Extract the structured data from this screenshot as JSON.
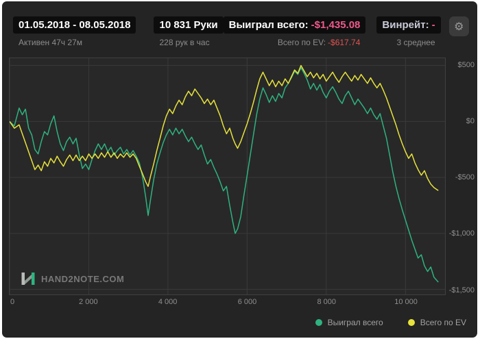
{
  "header": {
    "date_range": "01.05.2018 - 08.05.2018",
    "active_time": "Активен 47ч 27м",
    "hands": "10 831 Руки",
    "hands_per_hour": "228 рук в час",
    "won_total_label": "Выиграл всего:",
    "won_total_value": "-$1,435.08",
    "ev_total_label": "Всего по EV:",
    "ev_total_value": "-$617.74",
    "winrate_label": "Винрейт:",
    "winrate_value": "-",
    "average_label": "3 среднее",
    "won_value_color": "#f0598d",
    "ev_value_color": "#e05252",
    "winrate_value_color": "#f0598d"
  },
  "footer": {
    "logo_text": "HAND2NOTE.COM"
  },
  "icons": {
    "gear": "⚙"
  },
  "chart_data": {
    "type": "line",
    "title": "",
    "xlabel": "",
    "ylabel": "",
    "xlim": [
      0,
      11000
    ],
    "ylim": [
      -1545,
      565
    ],
    "x_ticks": [
      0,
      2000,
      4000,
      6000,
      8000,
      10000
    ],
    "x_tick_labels": [
      "0",
      "2 000",
      "4 000",
      "6 000",
      "8 000",
      "10 000"
    ],
    "y_ticks": [
      500,
      0,
      -500,
      -1000,
      -1500
    ],
    "y_tick_labels": [
      "$500",
      "$0",
      "-$500",
      "-$1,000",
      "-$1,500"
    ],
    "grid": true,
    "grid_color": "#3a3a3a",
    "plot_bg": "#282828",
    "legend_position": "bottom-right",
    "series": [
      {
        "name": "Выиграл всего",
        "color": "#2eb380",
        "points": [
          [
            0,
            0
          ],
          [
            120,
            -40
          ],
          [
            240,
            120
          ],
          [
            320,
            60
          ],
          [
            400,
            110
          ],
          [
            480,
            -60
          ],
          [
            560,
            -120
          ],
          [
            640,
            -250
          ],
          [
            720,
            -290
          ],
          [
            800,
            -180
          ],
          [
            880,
            -90
          ],
          [
            960,
            -120
          ],
          [
            1040,
            -20
          ],
          [
            1120,
            50
          ],
          [
            1200,
            -90
          ],
          [
            1280,
            -200
          ],
          [
            1360,
            -260
          ],
          [
            1440,
            -180
          ],
          [
            1520,
            -140
          ],
          [
            1600,
            -200
          ],
          [
            1680,
            -150
          ],
          [
            1760,
            -300
          ],
          [
            1840,
            -420
          ],
          [
            1920,
            -380
          ],
          [
            2000,
            -430
          ],
          [
            2080,
            -340
          ],
          [
            2160,
            -260
          ],
          [
            2240,
            -200
          ],
          [
            2320,
            -250
          ],
          [
            2400,
            -200
          ],
          [
            2480,
            -270
          ],
          [
            2560,
            -230
          ],
          [
            2640,
            -300
          ],
          [
            2720,
            -260
          ],
          [
            2800,
            -230
          ],
          [
            2880,
            -290
          ],
          [
            2960,
            -250
          ],
          [
            3040,
            -300
          ],
          [
            3120,
            -260
          ],
          [
            3200,
            -310
          ],
          [
            3280,
            -370
          ],
          [
            3360,
            -500
          ],
          [
            3440,
            -680
          ],
          [
            3500,
            -840
          ],
          [
            3560,
            -700
          ],
          [
            3640,
            -520
          ],
          [
            3720,
            -380
          ],
          [
            3800,
            -280
          ],
          [
            3880,
            -190
          ],
          [
            3960,
            -120
          ],
          [
            4040,
            -70
          ],
          [
            4120,
            -120
          ],
          [
            4200,
            -60
          ],
          [
            4280,
            -110
          ],
          [
            4360,
            -70
          ],
          [
            4440,
            -130
          ],
          [
            4520,
            -180
          ],
          [
            4600,
            -140
          ],
          [
            4680,
            -200
          ],
          [
            4760,
            -250
          ],
          [
            4840,
            -210
          ],
          [
            4920,
            -300
          ],
          [
            5000,
            -380
          ],
          [
            5080,
            -340
          ],
          [
            5160,
            -410
          ],
          [
            5240,
            -470
          ],
          [
            5320,
            -540
          ],
          [
            5400,
            -620
          ],
          [
            5480,
            -580
          ],
          [
            5560,
            -750
          ],
          [
            5640,
            -900
          ],
          [
            5700,
            -1000
          ],
          [
            5760,
            -960
          ],
          [
            5840,
            -850
          ],
          [
            5920,
            -660
          ],
          [
            6000,
            -480
          ],
          [
            6080,
            -300
          ],
          [
            6160,
            -120
          ],
          [
            6240,
            60
          ],
          [
            6320,
            200
          ],
          [
            6400,
            300
          ],
          [
            6480,
            240
          ],
          [
            6560,
            170
          ],
          [
            6640,
            230
          ],
          [
            6720,
            180
          ],
          [
            6800,
            250
          ],
          [
            6880,
            210
          ],
          [
            6960,
            300
          ],
          [
            7040,
            340
          ],
          [
            7120,
            390
          ],
          [
            7200,
            450
          ],
          [
            7280,
            420
          ],
          [
            7360,
            480
          ],
          [
            7440,
            430
          ],
          [
            7520,
            370
          ],
          [
            7600,
            290
          ],
          [
            7680,
            340
          ],
          [
            7760,
            280
          ],
          [
            7840,
            330
          ],
          [
            7920,
            260
          ],
          [
            8000,
            210
          ],
          [
            8080,
            270
          ],
          [
            8160,
            310
          ],
          [
            8240,
            260
          ],
          [
            8320,
            200
          ],
          [
            8400,
            160
          ],
          [
            8480,
            230
          ],
          [
            8560,
            270
          ],
          [
            8640,
            210
          ],
          [
            8720,
            150
          ],
          [
            8800,
            200
          ],
          [
            8880,
            160
          ],
          [
            8960,
            120
          ],
          [
            9040,
            70
          ],
          [
            9120,
            120
          ],
          [
            9200,
            60
          ],
          [
            9280,
            20
          ],
          [
            9360,
            70
          ],
          [
            9440,
            -40
          ],
          [
            9520,
            -150
          ],
          [
            9600,
            -300
          ],
          [
            9680,
            -450
          ],
          [
            9760,
            -580
          ],
          [
            9840,
            -690
          ],
          [
            9920,
            -790
          ],
          [
            10000,
            -880
          ],
          [
            10080,
            -970
          ],
          [
            10160,
            -1060
          ],
          [
            10240,
            -1140
          ],
          [
            10320,
            -1220
          ],
          [
            10400,
            -1190
          ],
          [
            10480,
            -1290
          ],
          [
            10560,
            -1340
          ],
          [
            10640,
            -1300
          ],
          [
            10720,
            -1390
          ],
          [
            10831,
            -1435
          ]
        ]
      },
      {
        "name": "Всего по EV",
        "color": "#e8e33c",
        "points": [
          [
            0,
            0
          ],
          [
            120,
            -60
          ],
          [
            240,
            -30
          ],
          [
            320,
            -110
          ],
          [
            400,
            -190
          ],
          [
            480,
            -270
          ],
          [
            560,
            -350
          ],
          [
            640,
            -430
          ],
          [
            720,
            -390
          ],
          [
            800,
            -440
          ],
          [
            880,
            -360
          ],
          [
            960,
            -400
          ],
          [
            1040,
            -330
          ],
          [
            1120,
            -370
          ],
          [
            1200,
            -310
          ],
          [
            1280,
            -360
          ],
          [
            1360,
            -400
          ],
          [
            1440,
            -340
          ],
          [
            1520,
            -300
          ],
          [
            1600,
            -350
          ],
          [
            1680,
            -300
          ],
          [
            1760,
            -350
          ],
          [
            1840,
            -310
          ],
          [
            1920,
            -350
          ],
          [
            2000,
            -290
          ],
          [
            2080,
            -330
          ],
          [
            2160,
            -290
          ],
          [
            2240,
            -330
          ],
          [
            2320,
            -280
          ],
          [
            2400,
            -320
          ],
          [
            2480,
            -270
          ],
          [
            2560,
            -320
          ],
          [
            2640,
            -280
          ],
          [
            2720,
            -330
          ],
          [
            2800,
            -290
          ],
          [
            2880,
            -320
          ],
          [
            2960,
            -280
          ],
          [
            3040,
            -320
          ],
          [
            3120,
            -290
          ],
          [
            3200,
            -330
          ],
          [
            3280,
            -400
          ],
          [
            3360,
            -470
          ],
          [
            3440,
            -540
          ],
          [
            3500,
            -580
          ],
          [
            3560,
            -490
          ],
          [
            3640,
            -380
          ],
          [
            3720,
            -260
          ],
          [
            3800,
            -150
          ],
          [
            3880,
            -40
          ],
          [
            3960,
            50
          ],
          [
            4040,
            110
          ],
          [
            4120,
            70
          ],
          [
            4200,
            140
          ],
          [
            4280,
            190
          ],
          [
            4360,
            150
          ],
          [
            4440,
            220
          ],
          [
            4520,
            270
          ],
          [
            4600,
            230
          ],
          [
            4680,
            290
          ],
          [
            4760,
            250
          ],
          [
            4840,
            210
          ],
          [
            4920,
            160
          ],
          [
            5000,
            200
          ],
          [
            5080,
            150
          ],
          [
            5160,
            190
          ],
          [
            5240,
            120
          ],
          [
            5320,
            50
          ],
          [
            5400,
            -40
          ],
          [
            5480,
            -110
          ],
          [
            5560,
            -60
          ],
          [
            5640,
            -150
          ],
          [
            5700,
            -200
          ],
          [
            5760,
            -240
          ],
          [
            5840,
            -180
          ],
          [
            5920,
            -100
          ],
          [
            6000,
            -20
          ],
          [
            6080,
            70
          ],
          [
            6160,
            170
          ],
          [
            6240,
            280
          ],
          [
            6320,
            380
          ],
          [
            6400,
            440
          ],
          [
            6480,
            380
          ],
          [
            6560,
            320
          ],
          [
            6640,
            370
          ],
          [
            6720,
            310
          ],
          [
            6800,
            360
          ],
          [
            6880,
            320
          ],
          [
            6960,
            380
          ],
          [
            7040,
            340
          ],
          [
            7120,
            400
          ],
          [
            7200,
            460
          ],
          [
            7280,
            430
          ],
          [
            7360,
            500
          ],
          [
            7440,
            450
          ],
          [
            7520,
            400
          ],
          [
            7600,
            440
          ],
          [
            7680,
            390
          ],
          [
            7760,
            430
          ],
          [
            7840,
            380
          ],
          [
            7920,
            420
          ],
          [
            8000,
            360
          ],
          [
            8080,
            400
          ],
          [
            8160,
            440
          ],
          [
            8240,
            390
          ],
          [
            8320,
            350
          ],
          [
            8400,
            400
          ],
          [
            8480,
            440
          ],
          [
            8560,
            400
          ],
          [
            8640,
            360
          ],
          [
            8720,
            410
          ],
          [
            8800,
            370
          ],
          [
            8880,
            420
          ],
          [
            8960,
            380
          ],
          [
            9040,
            340
          ],
          [
            9120,
            390
          ],
          [
            9200,
            340
          ],
          [
            9280,
            300
          ],
          [
            9360,
            340
          ],
          [
            9440,
            280
          ],
          [
            9520,
            210
          ],
          [
            9600,
            130
          ],
          [
            9680,
            50
          ],
          [
            9760,
            -30
          ],
          [
            9840,
            -120
          ],
          [
            9920,
            -200
          ],
          [
            10000,
            -270
          ],
          [
            10080,
            -330
          ],
          [
            10160,
            -290
          ],
          [
            10240,
            -370
          ],
          [
            10320,
            -430
          ],
          [
            10400,
            -480
          ],
          [
            10480,
            -440
          ],
          [
            10560,
            -510
          ],
          [
            10640,
            -560
          ],
          [
            10720,
            -590
          ],
          [
            10831,
            -617
          ]
        ]
      }
    ]
  }
}
